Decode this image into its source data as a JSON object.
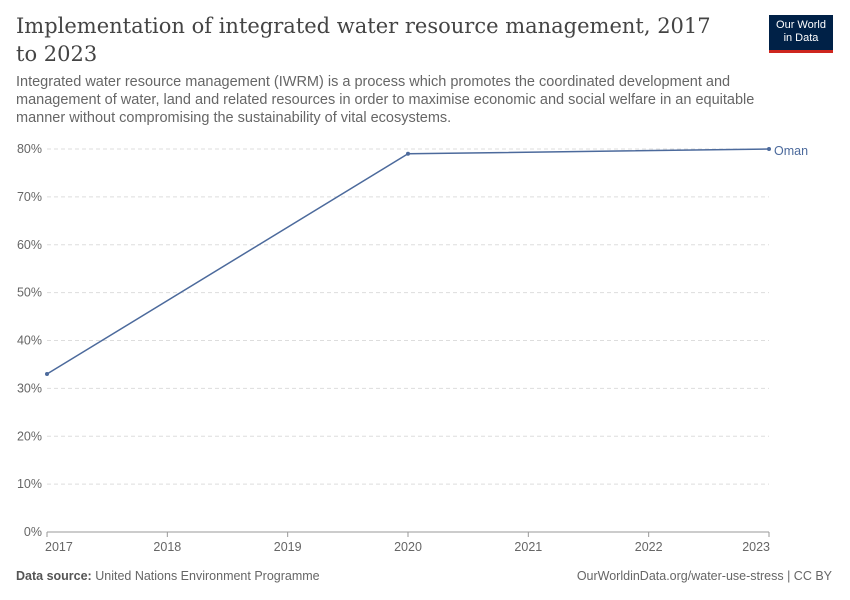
{
  "header": {
    "title": "Implementation of integrated water resource management, 2017 to 2023",
    "subtitle": "Integrated water resource management (IWRM) is a process which promotes the coordinated development and management of water, land and related resources in order to maximise economic and social welfare in an equitable manner without compromising the sustainability of vital ecosystems."
  },
  "logo": {
    "line1": "Our World",
    "line2": "in Data",
    "bg_color": "#002147",
    "accent_color": "#ce261e"
  },
  "footer": {
    "source_label": "Data source:",
    "source_text": "United Nations Environment Programme",
    "url_text": "OurWorldinData.org/water-use-stress | CC BY"
  },
  "chart_data": {
    "type": "line",
    "title": "Implementation of integrated water resource management, 2017 to 2023",
    "xlabel": "",
    "ylabel": "",
    "x_ticks": [
      "2017",
      "2018",
      "2019",
      "2020",
      "2021",
      "2022",
      "2023"
    ],
    "y_ticks": [
      "0%",
      "10%",
      "20%",
      "30%",
      "40%",
      "50%",
      "60%",
      "70%",
      "80%"
    ],
    "xlim": [
      2017,
      2023
    ],
    "ylim": [
      0,
      80
    ],
    "grid": "horizontal dashed",
    "series": [
      {
        "name": "Oman",
        "color": "#4c6a9c",
        "points": [
          {
            "x": 2017,
            "y": 33
          },
          {
            "x": 2020,
            "y": 79
          },
          {
            "x": 2023,
            "y": 80
          }
        ]
      }
    ]
  }
}
